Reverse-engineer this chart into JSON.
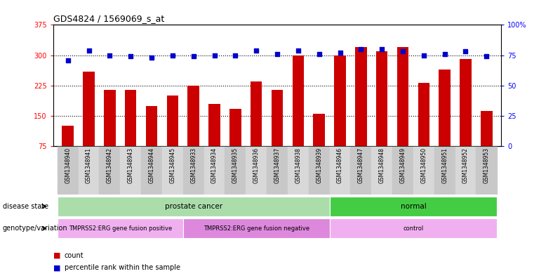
{
  "title": "GDS4824 / 1569069_s_at",
  "samples": [
    "GSM1348940",
    "GSM1348941",
    "GSM1348942",
    "GSM1348943",
    "GSM1348944",
    "GSM1348945",
    "GSM1348933",
    "GSM1348934",
    "GSM1348935",
    "GSM1348936",
    "GSM1348937",
    "GSM1348938",
    "GSM1348939",
    "GSM1348946",
    "GSM1348947",
    "GSM1348948",
    "GSM1348949",
    "GSM1348950",
    "GSM1348951",
    "GSM1348952",
    "GSM1348953"
  ],
  "counts": [
    125,
    260,
    215,
    215,
    175,
    200,
    225,
    180,
    168,
    235,
    215,
    300,
    155,
    300,
    320,
    310,
    320,
    232,
    265,
    290,
    163
  ],
  "percentiles": [
    71,
    79,
    75,
    74,
    73,
    75,
    74,
    75,
    75,
    79,
    76,
    79,
    76,
    77,
    80,
    80,
    78,
    75,
    76,
    78,
    74
  ],
  "ylim_left": [
    75,
    375
  ],
  "ylim_right": [
    0,
    100
  ],
  "yticks_left": [
    75,
    150,
    225,
    300,
    375
  ],
  "yticks_right": [
    0,
    25,
    50,
    75,
    100
  ],
  "ytick_labels_right": [
    "0",
    "25",
    "50",
    "75",
    "100%"
  ],
  "disease_state_groups": [
    {
      "label": "prostate cancer",
      "start": 0,
      "end": 13,
      "color": "#aaddaa"
    },
    {
      "label": "normal",
      "start": 13,
      "end": 21,
      "color": "#44cc44"
    }
  ],
  "genotype_groups": [
    {
      "label": "TMPRSS2:ERG gene fusion positive",
      "start": 0,
      "end": 6,
      "color": "#f0b0f0"
    },
    {
      "label": "TMPRSS2:ERG gene fusion negative",
      "start": 6,
      "end": 13,
      "color": "#dd88dd"
    },
    {
      "label": "control",
      "start": 13,
      "end": 21,
      "color": "#f0b0f0"
    }
  ],
  "bar_color": "#cc0000",
  "dot_color": "#0000cc",
  "background_color": "#ffffff",
  "grid_color": "#000000",
  "label_disease": "disease state",
  "label_genotype": "genotype/variation",
  "legend_count_label": "count",
  "legend_pct_label": "percentile rank within the sample",
  "col_colors": [
    "#c8c8c8",
    "#d8d8d8"
  ]
}
